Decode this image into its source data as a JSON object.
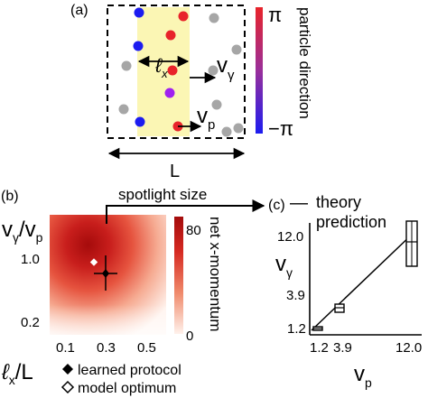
{
  "panel_a": {
    "label": "(a)",
    "spotlight_width_label": "ℓ",
    "spotlight_width_sub": "x",
    "spotlight_velocity_label": "v",
    "spotlight_velocity_sub": "γ",
    "particle_velocity_label": "v",
    "particle_velocity_sub": "p",
    "box_length_label": "L",
    "colorbar_title": "particle direction",
    "colorbar_max": "π",
    "colorbar_min": "−π",
    "colors": {
      "spotlight": "#fbf6b4",
      "min": "#1c1cf0",
      "max": "#e8232a",
      "mid": "#a020f0",
      "inactive": "#a6a6a6"
    },
    "particles": [
      {
        "state": "blue"
      },
      {
        "state": "red"
      },
      {
        "state": "gray"
      },
      {
        "state": "blue"
      },
      {
        "state": "red"
      },
      {
        "state": "gray"
      },
      {
        "state": "gray"
      },
      {
        "state": "gray"
      },
      {
        "state": "red"
      },
      {
        "state": "purple"
      },
      {
        "state": "gray"
      },
      {
        "state": "gray"
      },
      {
        "state": "blue"
      },
      {
        "state": "red"
      },
      {
        "state": "gray"
      },
      {
        "state": "gray"
      }
    ]
  },
  "panel_b": {
    "label": "(b)",
    "ylabel_num": "v",
    "ylabel_num_sub": "γ",
    "ylabel_den": "/v",
    "ylabel_den_sub": "p",
    "xlabel_main": "ℓ",
    "xlabel_sub": "x",
    "xlabel_rest": "/L",
    "xticks": [
      "0.1",
      "0.3",
      "0.5"
    ],
    "yticks": [
      "1.0",
      "0.2"
    ],
    "colorbar_title": "net x-momentum",
    "colorbar_ticks": [
      "80",
      "0"
    ],
    "callout": "spotlight size",
    "legend": [
      "learned protocol",
      "model optimum"
    ]
  },
  "panel_c": {
    "label": "(c)",
    "legend_line": "—",
    "legend_theory": "theory",
    "legend_prediction": "prediction",
    "ylabel": "v",
    "ylabel_sub": "γ",
    "xlabel": "v",
    "xlabel_sub": "p",
    "yticks": [
      "12.0",
      "3.9",
      "1.2"
    ],
    "xticks": [
      "1.2",
      "3.9",
      "12.0"
    ]
  }
}
